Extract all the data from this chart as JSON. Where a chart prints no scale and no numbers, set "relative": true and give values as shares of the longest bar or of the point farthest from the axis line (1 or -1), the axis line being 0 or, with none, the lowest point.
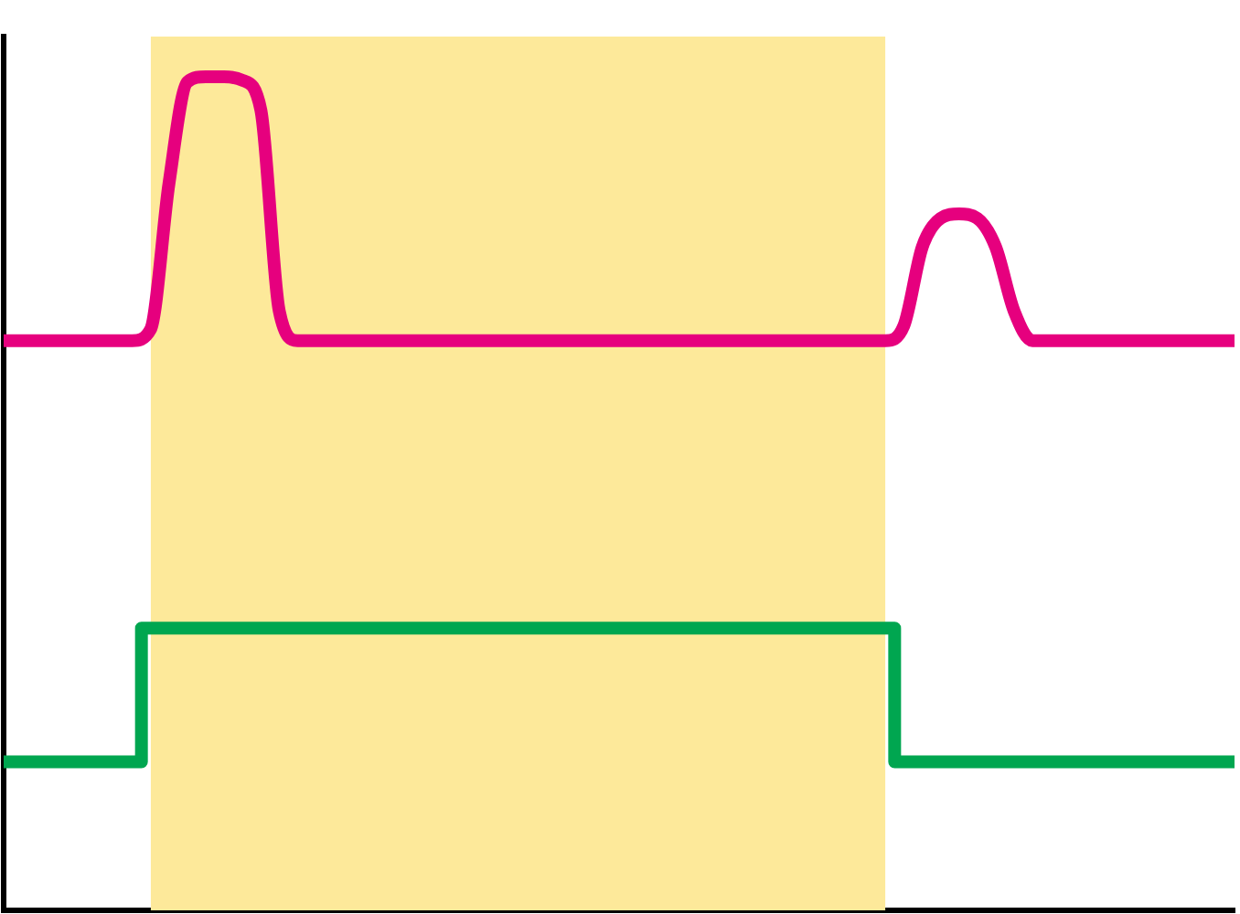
{
  "chart_data": {
    "type": "line",
    "relative": true,
    "grid": false,
    "marker": "none",
    "line_style": "solid",
    "categories": [
      null,
      null,
      null,
      null,
      null,
      null,
      null,
      null,
      null,
      null,
      null,
      null,
      null,
      null,
      null,
      null,
      null,
      null,
      null,
      null,
      null,
      null,
      null,
      null,
      null,
      null,
      null,
      null,
      null,
      null,
      null,
      null,
      null,
      null,
      null,
      null,
      null,
      null,
      null,
      null,
      null,
      null,
      null,
      null,
      null,
      null,
      null,
      null,
      null,
      null,
      null,
      null,
      null,
      null,
      null,
      null,
      null,
      null,
      null,
      null,
      null,
      null,
      null,
      null,
      null,
      null,
      null,
      null
    ],
    "series": [
      {
        "type": "area",
        "color": "#fde99a",
        "values": [
          null,
          null,
          null,
          null,
          null,
          null,
          null,
          null,
          1,
          1,
          1,
          1,
          1,
          1,
          1,
          1,
          1,
          1,
          1,
          1,
          1,
          1,
          1,
          1,
          1,
          1,
          1,
          1,
          1,
          1,
          1,
          1,
          1,
          1,
          1,
          1,
          1,
          1,
          1,
          1,
          1,
          1,
          1,
          1,
          1,
          1,
          1,
          1,
          1,
          null,
          null,
          null,
          null,
          null,
          null,
          null,
          null,
          null,
          null,
          null,
          null,
          null,
          null,
          null,
          null,
          null,
          null,
          null
        ]
      },
      {
        "color": "#e6007e",
        "values": [
          0.652,
          0.652,
          0.652,
          0.652,
          0.652,
          0.652,
          0.652,
          0.652,
          0.665,
          0.832,
          0.948,
          0.954,
          0.954,
          0.95,
          0.916,
          0.686,
          0.652,
          0.652,
          0.652,
          0.652,
          0.652,
          0.652,
          0.652,
          0.652,
          0.652,
          0.652,
          0.652,
          0.652,
          0.652,
          0.652,
          0.652,
          0.652,
          0.652,
          0.652,
          0.652,
          0.652,
          0.652,
          0.652,
          0.652,
          0.652,
          0.652,
          0.652,
          0.652,
          0.652,
          0.652,
          0.652,
          0.652,
          0.652,
          0.652,
          0.669,
          0.759,
          0.792,
          0.797,
          0.792,
          0.759,
          0.686,
          0.652,
          0.652,
          0.652,
          0.652,
          0.652,
          0.652,
          0.652,
          0.652,
          0.652,
          0.652,
          0.652,
          0.652
        ]
      },
      {
        "type": "step",
        "color": "#00a650",
        "values": [
          0.17,
          0.17,
          0.17,
          0.17,
          0.17,
          0.17,
          0.17,
          0.17,
          0.323,
          0.323,
          0.323,
          0.323,
          0.323,
          0.323,
          0.323,
          0.323,
          0.323,
          0.323,
          0.323,
          0.323,
          0.323,
          0.323,
          0.323,
          0.323,
          0.323,
          0.323,
          0.323,
          0.323,
          0.323,
          0.323,
          0.323,
          0.323,
          0.323,
          0.323,
          0.323,
          0.323,
          0.323,
          0.323,
          0.323,
          0.323,
          0.323,
          0.323,
          0.323,
          0.323,
          0.323,
          0.323,
          0.323,
          0.323,
          0.323,
          0.17,
          0.17,
          0.17,
          0.17,
          0.17,
          0.17,
          0.17,
          0.17,
          0.17,
          0.17,
          0.17,
          0.17,
          0.17,
          0.17,
          0.17,
          0.17,
          0.17,
          0.17,
          0.17
        ]
      }
    ]
  }
}
